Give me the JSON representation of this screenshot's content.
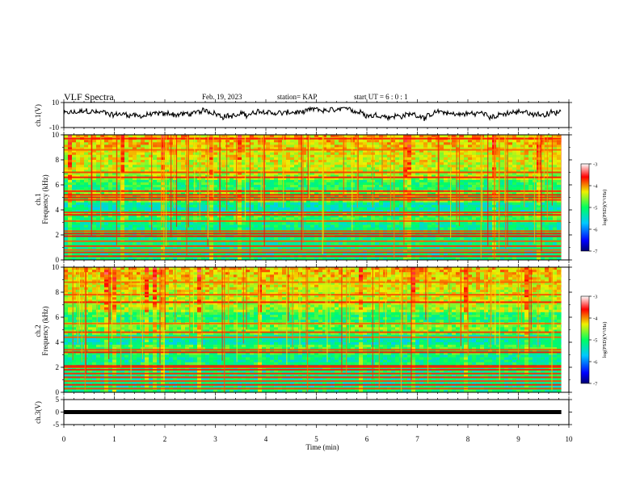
{
  "header": {
    "title": "VLF Spectra",
    "date": "Feb. 19, 2023",
    "station": "station= KAP",
    "start": "start UT =  6 : 0 : 1"
  },
  "chart_data": [
    {
      "type": "line",
      "name": "ch1-voltage",
      "ylabel": "ch.1(V)",
      "ylim": [
        -10,
        10
      ],
      "ytick_labels": [
        "10",
        "-10"
      ],
      "x_range_min": [
        0,
        9.85
      ],
      "y_mean_approx": 1,
      "y_fluctuation_approx": [
        -5,
        6
      ]
    },
    {
      "type": "heatmap",
      "name": "ch1-spectrogram",
      "ylabel": "Frequency (kHz)",
      "channel": "ch.1",
      "ylim": [
        0,
        10
      ],
      "ytick_labels": [
        "0",
        "2",
        "4",
        "6",
        "8",
        "10"
      ],
      "x_range_min": [
        0,
        9.85
      ],
      "approx_value_range_log10": [
        -7,
        -3
      ],
      "horizontal_bands_khz": [
        0.3,
        0.6,
        0.8,
        1.1,
        1.5,
        1.9,
        2.1,
        2.3,
        3.1,
        3.6,
        3.8,
        4.8,
        5.0,
        5.2,
        5.5,
        6.6,
        7.0,
        8.8,
        9.7
      ],
      "colorbar": {
        "label": "log(PSD)(V²/Hz)",
        "range": [
          -7,
          -3
        ],
        "tick_labels": [
          "-3",
          "-4",
          "-5",
          "-6",
          "-7"
        ]
      }
    },
    {
      "type": "heatmap",
      "name": "ch2-spectrogram",
      "ylabel": "Frequency (kHz)",
      "channel": "ch.2",
      "ylim": [
        0,
        10
      ],
      "ytick_labels": [
        "0",
        "2",
        "4",
        "6",
        "8",
        "10"
      ],
      "x_range_min": [
        0,
        9.85
      ],
      "approx_value_range_log10": [
        -7,
        -3
      ],
      "horizontal_bands_khz": [
        0.3,
        0.6,
        0.9,
        1.2,
        1.5,
        1.8,
        2.0,
        2.1,
        3.2,
        3.4,
        4.4,
        4.8,
        5.5,
        7.2,
        7.8,
        8.8
      ],
      "colorbar": {
        "label": "log(PSD)(V²/Hz)",
        "range": [
          -7,
          -3
        ],
        "tick_labels": [
          "-3",
          "-4",
          "-5",
          "-6",
          "-7"
        ]
      }
    },
    {
      "type": "line",
      "name": "ch3-voltage",
      "ylabel": "ch.3(V)",
      "ylim": [
        -5,
        5
      ],
      "ytick_labels": [
        "5",
        "0",
        "-5"
      ],
      "x_range_min": [
        0,
        9.85
      ],
      "y_constant_approx": 0
    }
  ],
  "xaxis": {
    "label": "Time (min)",
    "ticks": [
      0,
      1,
      2,
      3,
      4,
      5,
      6,
      7,
      8,
      9,
      10
    ],
    "tick_labels": [
      "0",
      "1",
      "2",
      "3",
      "4",
      "5",
      "6",
      "7",
      "8",
      "9",
      "10"
    ]
  },
  "colors": {
    "line": "#000000",
    "background": "#ffffff"
  }
}
